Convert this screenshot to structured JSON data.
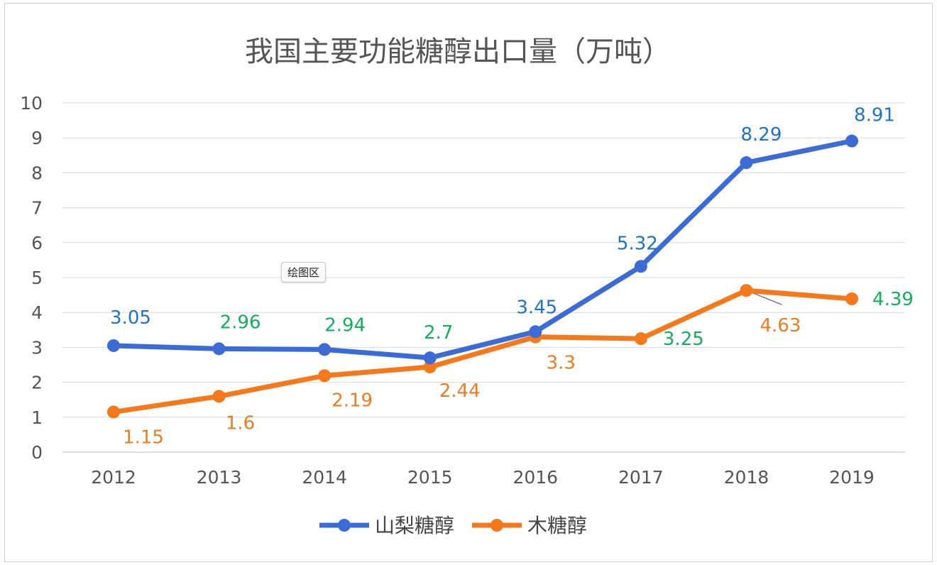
{
  "chart_data": {
    "type": "line",
    "title": "我国主要功能糖醇出口量（万吨）",
    "categories": [
      "2012",
      "2013",
      "2014",
      "2015",
      "2016",
      "2017",
      "2018",
      "2019"
    ],
    "ylim": [
      0,
      10
    ],
    "yticks": [
      0,
      1,
      2,
      3,
      4,
      5,
      6,
      7,
      8,
      9,
      10
    ],
    "grid": true,
    "legend": "bottom",
    "series": [
      {
        "name": "山梨糖醇",
        "color": "#3a6bd6",
        "values": [
          3.05,
          2.96,
          2.94,
          2.7,
          3.45,
          5.32,
          8.29,
          8.91
        ],
        "label_colors": [
          "#1f72c9",
          "#12b05a",
          "#12b05a",
          "#12b05a",
          "#1f72c9",
          "#1f72c9",
          "#1f72c9",
          "#1f72c9"
        ]
      },
      {
        "name": "木糖醇",
        "color": "#f5781a",
        "values": [
          1.15,
          1.6,
          2.19,
          2.44,
          3.3,
          3.25,
          4.63,
          4.39
        ],
        "label_colors": [
          "#f07a1e",
          "#f07a1e",
          "#f07a1e",
          "#f07a1e",
          "#f07a1e",
          "#12b05a",
          "#f07a1e",
          "#12b05a"
        ]
      }
    ]
  },
  "tooltip": "绘图区"
}
